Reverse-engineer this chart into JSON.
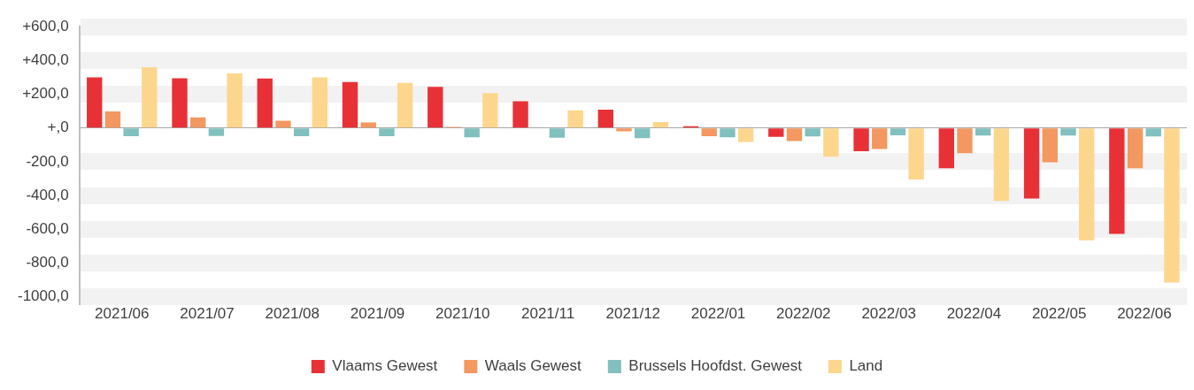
{
  "chart_data": {
    "type": "bar",
    "categories": [
      "2021/06",
      "2021/07",
      "2021/08",
      "2021/09",
      "2021/10",
      "2021/11",
      "2021/12",
      "2022/01",
      "2022/02",
      "2022/03",
      "2022/04",
      "2022/05",
      "2022/06"
    ],
    "series": [
      {
        "name": "Vlaams Gewest",
        "color": "#e83137",
        "values": [
          300,
          295,
          293,
          272,
          243,
          158,
          108,
          10,
          -53,
          -138,
          -238,
          -418,
          -628
        ]
      },
      {
        "name": "Waals Gewest",
        "color": "#f29860",
        "values": [
          98,
          63,
          43,
          32,
          7,
          0,
          -20,
          -48,
          -78,
          -125,
          -150,
          -203,
          -238
        ]
      },
      {
        "name": "Brussels Hoofdst. Gewest",
        "color": "#80c0bf",
        "values": [
          -48,
          -47,
          -48,
          -48,
          -55,
          -58,
          -60,
          -55,
          -50,
          -43,
          -45,
          -45,
          -50
        ]
      },
      {
        "name": "Land",
        "color": "#fdd68e",
        "values": [
          360,
          323,
          300,
          267,
          207,
          105,
          35,
          -83,
          -170,
          -305,
          -433,
          -665,
          -915
        ]
      }
    ],
    "ylim": [
      -1000,
      600
    ],
    "yticks": [
      {
        "value": 600,
        "label": "+600,0"
      },
      {
        "value": 400,
        "label": "+400,0"
      },
      {
        "value": 200,
        "label": "+200,0"
      },
      {
        "value": 0,
        "label": "+,0"
      },
      {
        "value": -200,
        "label": "-200,0"
      },
      {
        "value": -400,
        "label": "-400,0"
      },
      {
        "value": -600,
        "label": "-600,0"
      },
      {
        "value": -800,
        "label": "-800,0"
      },
      {
        "value": -1000,
        "label": "-1000,0"
      }
    ],
    "grid": "y",
    "legend": "bottom"
  }
}
